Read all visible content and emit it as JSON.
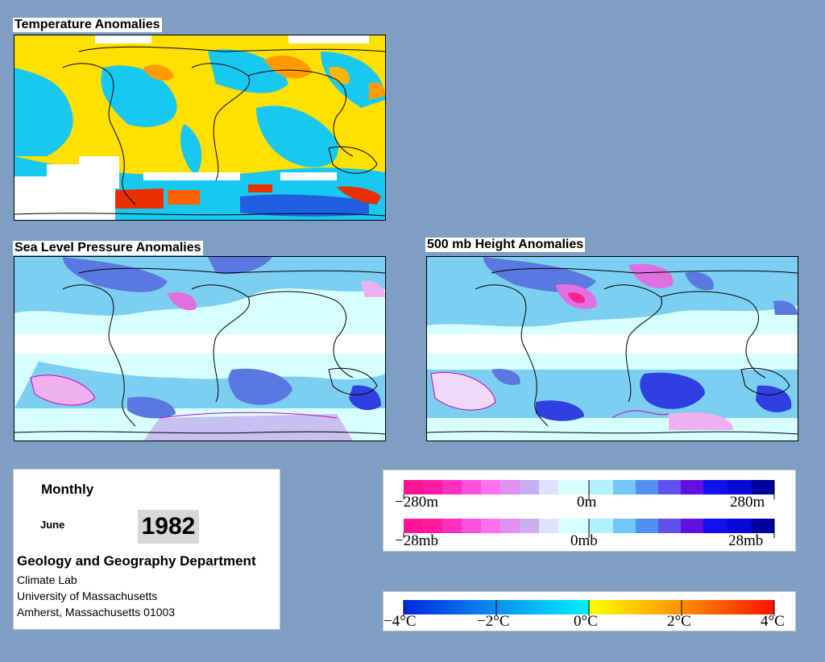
{
  "panels": {
    "temperature": {
      "title": "Temperature Anomalies"
    },
    "slp": {
      "title": "Sea Level Pressure Anomalies"
    },
    "height500": {
      "title": "500 mb Height Anomalies"
    }
  },
  "info": {
    "period": "Monthly",
    "month": "June",
    "year": "1982",
    "department": "Geology and Geography Department",
    "lab": "Climate Lab",
    "university": "University of Massachusetts",
    "address": "Amherst, Massachusetts 01003"
  },
  "legends": {
    "height": {
      "labels": [
        "−280m",
        "0m",
        "280m"
      ]
    },
    "pressure": {
      "labels": [
        "−28mb",
        "0mb",
        "28mb"
      ]
    },
    "temperature": {
      "labels": [
        "−4°C",
        "−2°C",
        "0°C",
        "2°C",
        "4°C"
      ]
    }
  },
  "colors": {
    "background": "#7f9ec4",
    "warm_max": "#ff0000",
    "cold_max": "#0000d0",
    "neutral": "#e8ffff",
    "pink_max": "#ff1493"
  }
}
